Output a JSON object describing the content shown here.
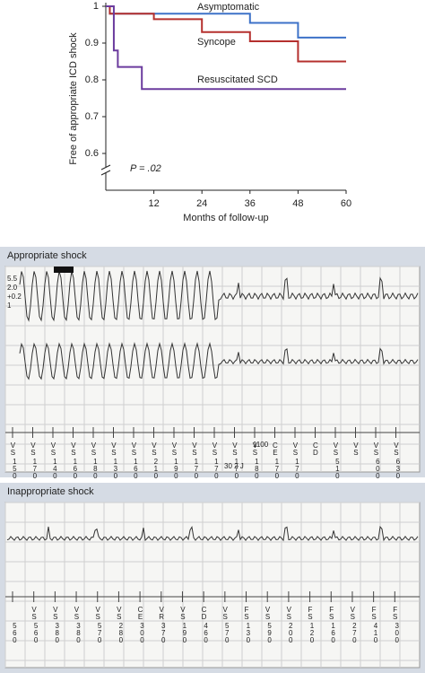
{
  "chart_data": {
    "type": "line",
    "step": true,
    "y_label": "Free of appropriate ICD shock",
    "x_label": "Months of follow-up",
    "annotation": "P = .02",
    "xlim": [
      0,
      60
    ],
    "xticks": [
      12,
      24,
      36,
      48,
      60
    ],
    "ylim": [
      0.5,
      1
    ],
    "yticks": [
      0.6,
      0.7,
      0.8,
      0.9,
      1
    ],
    "axis_break": true,
    "series": [
      {
        "name": "Asymptomatic",
        "color": "#3d72c8",
        "x": [
          0,
          1,
          36,
          48,
          60
        ],
        "values": [
          1,
          0.98,
          0.955,
          0.915,
          0.915
        ]
      },
      {
        "name": "Syncope",
        "color": "#b5302e",
        "x": [
          0,
          1,
          12,
          24,
          36,
          48,
          60
        ],
        "values": [
          1,
          0.98,
          0.965,
          0.93,
          0.905,
          0.85,
          0.85
        ]
      },
      {
        "name": "Resuscitated SCD",
        "color": "#6b3b9e",
        "x": [
          0,
          2,
          3,
          9,
          60
        ],
        "values": [
          1,
          0.88,
          0.835,
          0.775,
          0.775
        ]
      }
    ]
  },
  "panels": [
    {
      "title": "Appropriate shock",
      "scale_labels": [
        "5.5",
        "2.0",
        "+0.2",
        "1"
      ],
      "notes": [
        "1100",
        "30 2 J"
      ],
      "markers": [
        [
          "VS",
          "150"
        ],
        [
          "VS",
          "170"
        ],
        [
          "VS",
          "140"
        ],
        [
          "VS",
          "160"
        ],
        [
          "VS",
          "180"
        ],
        [
          "VS",
          "130"
        ],
        [
          "VS",
          "160"
        ],
        [
          "VS",
          "210"
        ],
        [
          "VS",
          "190"
        ],
        [
          "VS",
          "170"
        ],
        [
          "VS",
          "170"
        ],
        [
          "VS",
          "170"
        ],
        [
          "VS",
          "180"
        ],
        [
          "CE",
          "170"
        ],
        [
          "VS",
          "170"
        ],
        [
          "CD",
          ""
        ],
        [
          "VS",
          "510"
        ],
        [
          "VS",
          ""
        ],
        [
          "VS",
          "600"
        ],
        [
          "VS",
          "630"
        ]
      ]
    },
    {
      "title": "Inappropriate shock",
      "notes": [],
      "markers": [
        [
          "",
          "560"
        ],
        [
          "VS",
          "560"
        ],
        [
          "VS",
          "380"
        ],
        [
          "VS",
          "380"
        ],
        [
          "VS",
          "570"
        ],
        [
          "VS",
          "280"
        ],
        [
          "CE",
          "300"
        ],
        [
          "VR",
          "370"
        ],
        [
          "VS",
          "190"
        ],
        [
          "CD",
          "460"
        ],
        [
          "VS",
          "570"
        ],
        [
          "FS",
          "130"
        ],
        [
          "VS",
          "590"
        ],
        [
          "VS",
          "200"
        ],
        [
          "FS",
          "120"
        ],
        [
          "FS",
          "160"
        ],
        [
          "VS",
          "270"
        ],
        [
          "FS",
          "410"
        ],
        [
          "FS",
          "300"
        ]
      ]
    }
  ]
}
